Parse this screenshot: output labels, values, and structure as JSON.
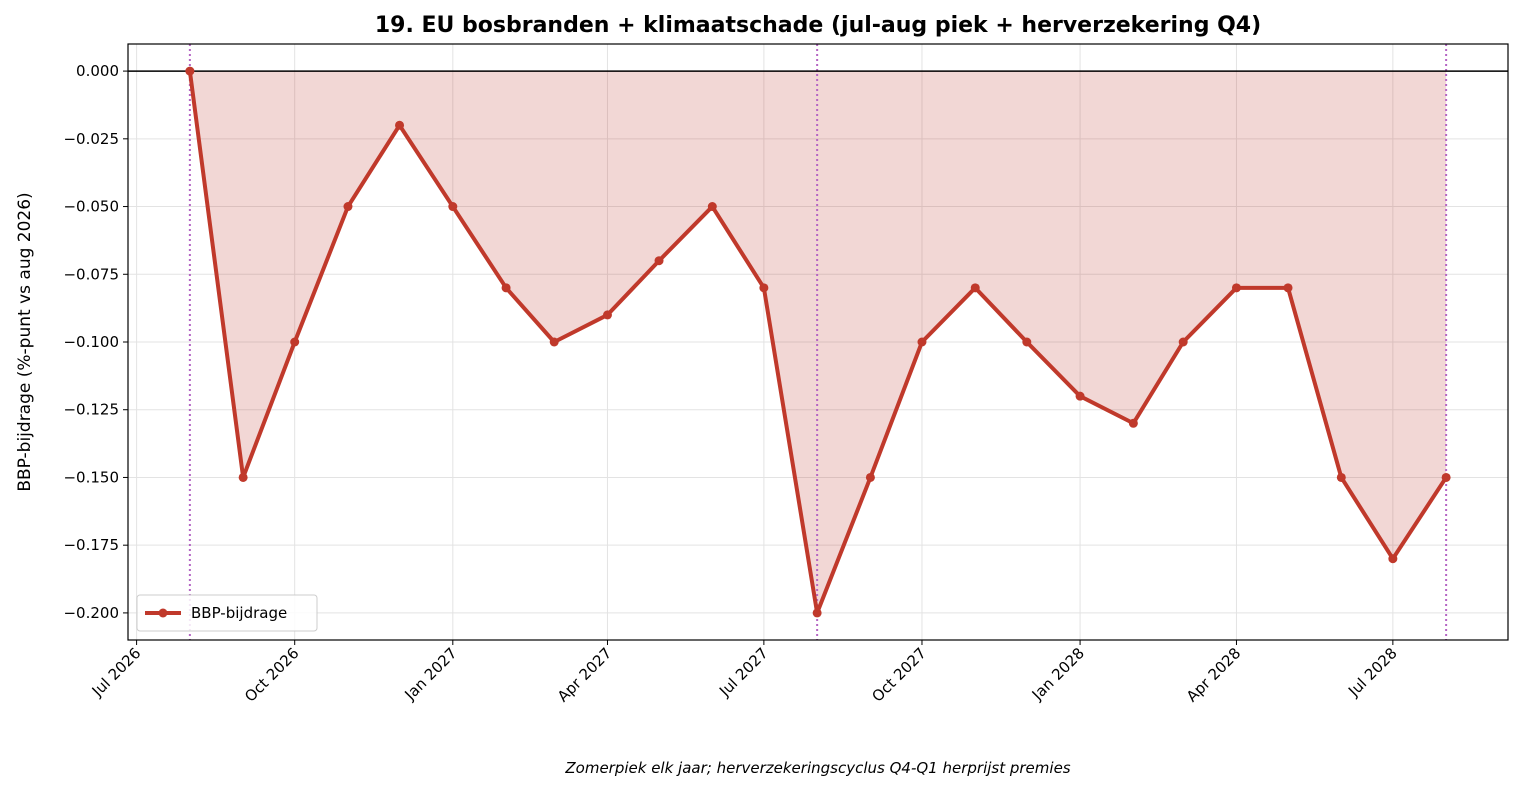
{
  "chart_data": {
    "type": "line",
    "title": "19. EU bosbranden + klimaatschade (jul-aug piek + herverzekering Q4)",
    "ylabel": "BBP-bijdrage (%-punt vs aug 2026)",
    "footnote": "Zomerpiek elk jaar; herverzekeringscyclus Q4-Q1 herprijst premies",
    "x": [
      "2026-08",
      "2026-09",
      "2026-10",
      "2026-11",
      "2026-12",
      "2027-01",
      "2027-02",
      "2027-03",
      "2027-04",
      "2027-05",
      "2027-06",
      "2027-07",
      "2027-08",
      "2027-09",
      "2027-10",
      "2027-11",
      "2027-12",
      "2028-01",
      "2028-02",
      "2028-03",
      "2028-04",
      "2028-05",
      "2028-06",
      "2028-07",
      "2028-08"
    ],
    "series": [
      {
        "name": "BBP-bijdrage",
        "color": "#c0392b",
        "values": [
          0,
          -0.15,
          -0.1,
          -0.05,
          -0.02,
          -0.05,
          -0.08,
          -0.1,
          -0.09,
          -0.07,
          -0.05,
          -0.08,
          -0.2,
          -0.15,
          -0.1,
          -0.08,
          -0.1,
          -0.12,
          -0.13,
          -0.1,
          -0.08,
          -0.08,
          -0.15,
          -0.18,
          -0.15
        ]
      }
    ],
    "fill": true,
    "vlines": [
      "2026-08",
      "2027-08",
      "2028-08"
    ],
    "vline_color": "#b565c4",
    "xlim": [
      "2026-06-26",
      "2028-09-06"
    ],
    "xticks": [
      {
        "value": "2026-07",
        "label": "Jul 2026"
      },
      {
        "value": "2026-10",
        "label": "Oct 2026"
      },
      {
        "value": "2027-01",
        "label": "Jan 2027"
      },
      {
        "value": "2027-04",
        "label": "Apr 2027"
      },
      {
        "value": "2027-07",
        "label": "Jul 2027"
      },
      {
        "value": "2027-10",
        "label": "Oct 2027"
      },
      {
        "value": "2028-01",
        "label": "Jan 2028"
      },
      {
        "value": "2028-04",
        "label": "Apr 2028"
      },
      {
        "value": "2028-07",
        "label": "Jul 2028"
      }
    ],
    "ylim": [
      -0.21,
      0.01
    ],
    "yticks": [
      {
        "value": 0,
        "label": "0.000"
      },
      {
        "value": -0.025,
        "label": "−0.025"
      },
      {
        "value": -0.05,
        "label": "−0.050"
      },
      {
        "value": -0.075,
        "label": "−0.075"
      },
      {
        "value": -0.1,
        "label": "−0.100"
      },
      {
        "value": -0.125,
        "label": "−0.125"
      },
      {
        "value": -0.15,
        "label": "−0.150"
      },
      {
        "value": -0.175,
        "label": "−0.175"
      },
      {
        "value": -0.2,
        "label": "−0.200"
      }
    ],
    "grid": true,
    "legend": "lower left"
  }
}
